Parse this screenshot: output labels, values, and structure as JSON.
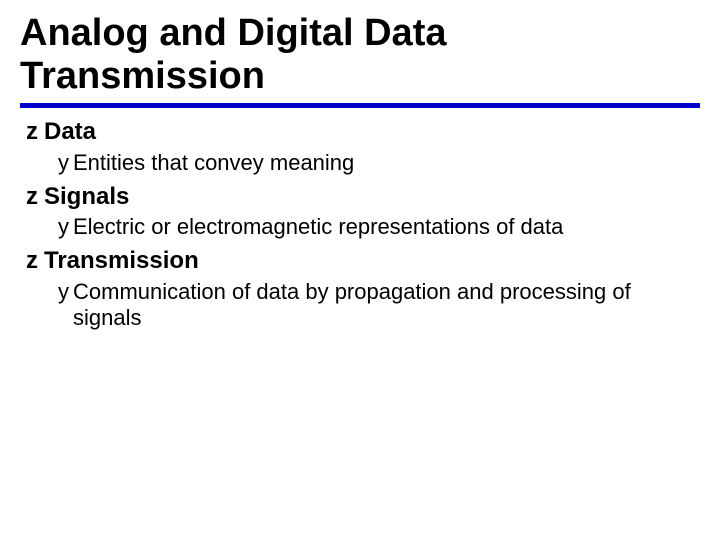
{
  "colors": {
    "background": "#ffffff",
    "text": "#000000",
    "rule": "#0000c8"
  },
  "typography": {
    "title_family": "Arial Black, Arial",
    "title_size_pt": 28,
    "title_weight": 900,
    "level1_family": "Verdana",
    "level1_size_pt": 18,
    "level1_weight": 700,
    "level2_family": "Verdana",
    "level2_size_pt": 16,
    "level2_weight": 400
  },
  "bullets": {
    "level1_glyph": "z",
    "level2_glyph": "y"
  },
  "title": "Analog and Digital Data Transmission",
  "items": [
    {
      "label": "Data",
      "sub": [
        "Entities that convey meaning"
      ]
    },
    {
      "label": "Signals",
      "sub": [
        "Electric or electromagnetic representations of data"
      ]
    },
    {
      "label": "Transmission",
      "sub": [
        "Communication of data by propagation and processing of signals"
      ]
    }
  ]
}
